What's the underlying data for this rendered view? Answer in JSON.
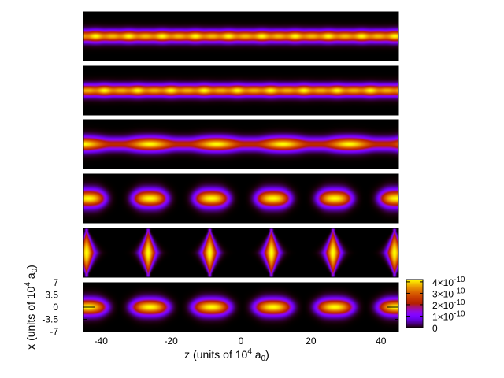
{
  "chart_data": {
    "type": "heatmap",
    "panels": [
      {
        "pattern": "continuous",
        "period": 9.5,
        "phase": -41.5,
        "modulation": 0.1,
        "lobe_width": 3.8,
        "sigma_x": 1.1
      },
      {
        "pattern": "continuous",
        "period": 9.5,
        "phase": -39.0,
        "modulation": 0.12,
        "lobe_width": 3.8,
        "sigma_x": 1.1
      },
      {
        "pattern": "mixed",
        "period": 19.0,
        "phase": -26.0,
        "modulation": 0.45,
        "lobe_width": 6.0,
        "sigma_x": 1.3
      },
      {
        "pattern": "separated",
        "period": 17.6,
        "phase": -26.0,
        "modulation": 1.0,
        "lobe_width": 4.8,
        "sigma_x": 1.6
      },
      {
        "pattern": "diamond",
        "period": 17.6,
        "phase": -26.5,
        "modulation": 1.0,
        "lobe_width": 1.5,
        "sigma_x": 4.5
      },
      {
        "pattern": "separated",
        "period": 17.6,
        "phase": -26.0,
        "modulation": 1.0,
        "lobe_width": 5.2,
        "sigma_x": 1.5
      }
    ],
    "x_axis": {
      "label_main": "z  (units of 10",
      "label_sup": "4",
      "label_mid": " a",
      "label_sub": "0",
      "label_end": ")",
      "range": [
        -45,
        45
      ],
      "ticks": [
        -40,
        -20,
        0,
        20,
        40
      ],
      "tick_labels": [
        "-40",
        "-20",
        "0",
        "20",
        "40"
      ]
    },
    "y_axis": {
      "label_main": "x  (units of 10",
      "label_sup": "4",
      "label_mid": " a",
      "label_sub": "0",
      "label_end": ")",
      "range": [
        -7,
        7
      ],
      "ticks": [
        7,
        3.5,
        0,
        -3.5,
        -7
      ],
      "tick_labels": [
        "7",
        "3.5",
        "0",
        "-3.5",
        "-7"
      ]
    },
    "colorbar": {
      "range": [
        0,
        4.2e-10
      ],
      "ticks": [
        4e-10,
        3e-10,
        2e-10,
        1e-10,
        0
      ],
      "tick_labels": [
        "4×10",
        "3×10",
        "2×10",
        "1×10",
        "0"
      ],
      "tick_exponents": [
        "-10",
        "-10",
        "-10",
        "-10",
        ""
      ],
      "palette": "gnuplot"
    }
  }
}
